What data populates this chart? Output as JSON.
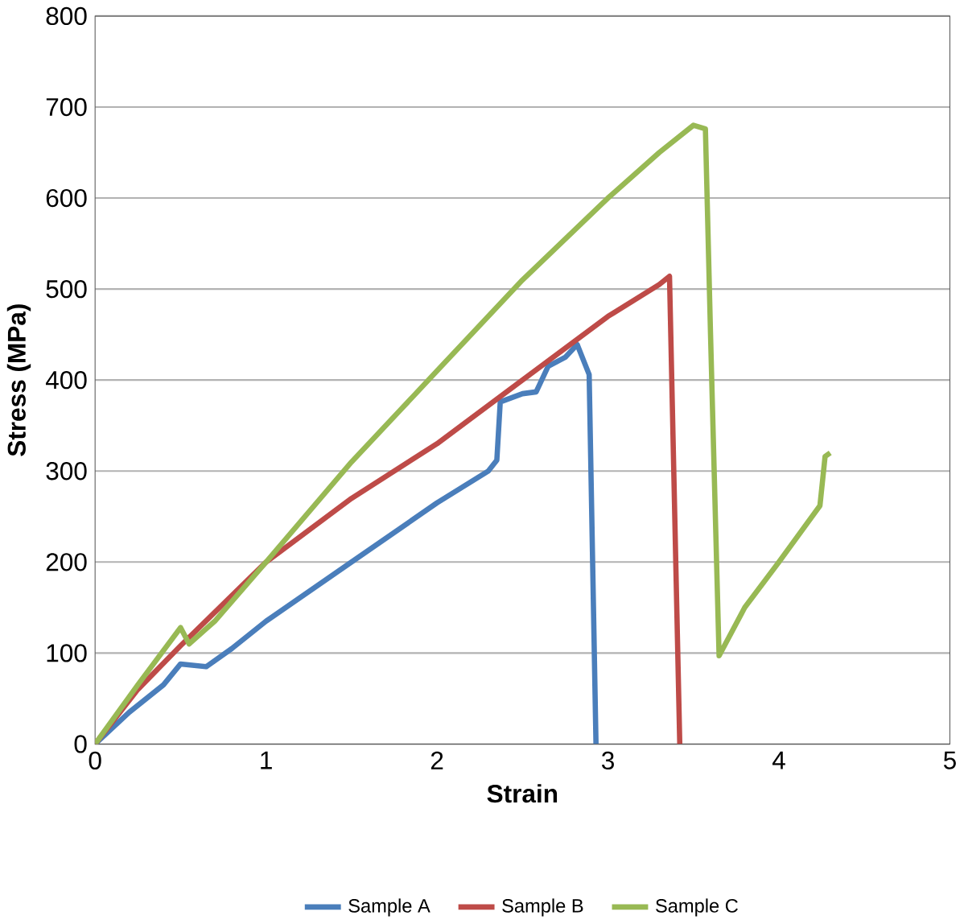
{
  "chart_data": {
    "type": "line",
    "xlabel": "Strain",
    "ylabel": "Stress (MPa)",
    "xlim": [
      0,
      5
    ],
    "xticks": [
      0,
      1,
      2,
      3,
      4,
      5
    ],
    "ylim": [
      0,
      800
    ],
    "yticks": [
      0,
      100,
      200,
      300,
      400,
      500,
      600,
      700,
      800
    ],
    "grid": "y",
    "legend": "bottom",
    "series": [
      {
        "name": "Sample A",
        "color": "#4a7ebb",
        "x": [
          0,
          0.2,
          0.4,
          0.5,
          0.65,
          0.8,
          1,
          1.5,
          2,
          2.3,
          2.35,
          2.37,
          2.5,
          2.58,
          2.65,
          2.75,
          2.82,
          2.89,
          2.93
        ],
        "values": [
          0,
          35,
          65,
          88,
          85,
          105,
          135,
          200,
          265,
          300,
          312,
          376,
          385,
          387,
          415,
          425,
          439,
          406,
          0
        ]
      },
      {
        "name": "Sample B",
        "color": "#be4b48",
        "x": [
          0,
          0.25,
          0.5,
          1,
          1.5,
          2,
          2.5,
          3,
          3.3,
          3.36,
          3.42
        ],
        "values": [
          0,
          60,
          108,
          200,
          270,
          330,
          400,
          470,
          505,
          514,
          0
        ]
      },
      {
        "name": "Sample C",
        "color": "#98b954",
        "x": [
          0,
          0.25,
          0.5,
          0.55,
          0.7,
          1,
          1.5,
          2,
          2.5,
          3,
          3.3,
          3.5,
          3.57,
          3.6,
          3.65,
          3.8,
          4,
          4.24,
          4.27,
          4.3
        ],
        "values": [
          0,
          65,
          128,
          110,
          135,
          200,
          310,
          410,
          510,
          600,
          650,
          680,
          676,
          450,
          97,
          150,
          200,
          262,
          316,
          320
        ]
      }
    ]
  }
}
